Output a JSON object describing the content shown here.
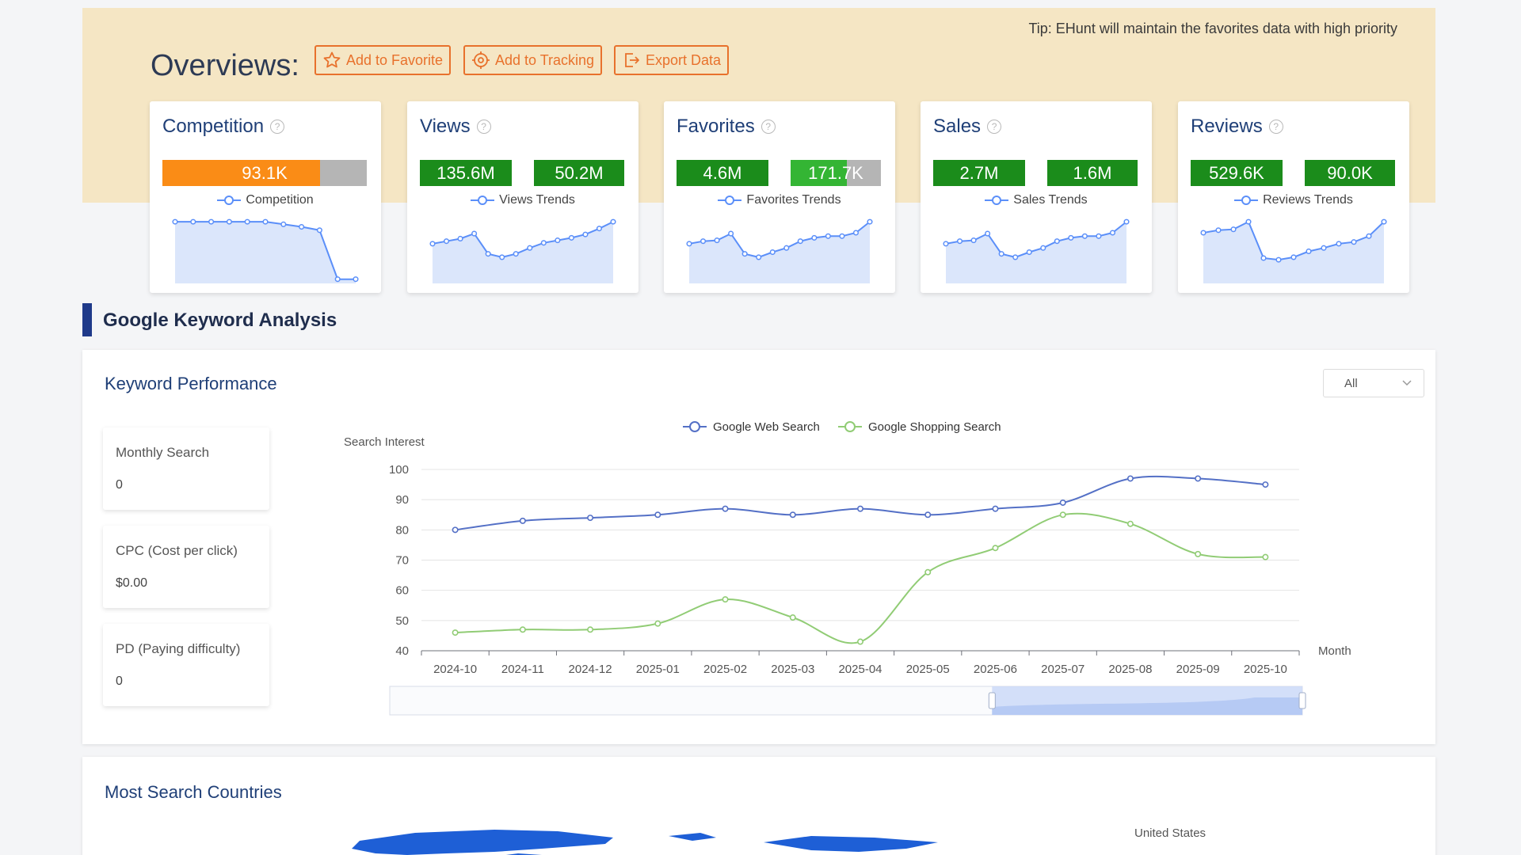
{
  "header": {
    "tip": "Tip: EHunt will maintain the favorites data with high priority",
    "title": "Overviews:",
    "buttons": {
      "favorite": "Add to Favorite",
      "tracking": "Add to Tracking",
      "export": "Export Data"
    }
  },
  "cards": [
    {
      "title": "Competition",
      "legend": "Competition",
      "bars": [
        {
          "value": "93.1K",
          "color": "#fa8c16",
          "fill": 0.77
        }
      ],
      "trend": [
        98,
        98,
        98,
        98,
        98,
        98,
        95,
        92,
        88,
        30,
        30
      ]
    },
    {
      "title": "Views",
      "legend": "Views Trends",
      "bars": [
        {
          "value": "135.6M",
          "color": "#1b8c1b",
          "fill": 1.0
        },
        {
          "value": "50.2M",
          "color": "#1b8c1b",
          "fill": 1.0
        }
      ],
      "trend": [
        72,
        75,
        78,
        84,
        60,
        56,
        60,
        67,
        73,
        76,
        79,
        83,
        90,
        98
      ]
    },
    {
      "title": "Favorites",
      "legend": "Favorites Trends",
      "bars": [
        {
          "value": "4.6M",
          "color": "#1b8c1b",
          "fill": 1.0
        },
        {
          "value": "171.7K",
          "color": "#34b534",
          "fill": 0.62
        }
      ],
      "trend": [
        72,
        75,
        76,
        84,
        60,
        56,
        62,
        67,
        75,
        79,
        81,
        81,
        85,
        98
      ]
    },
    {
      "title": "Sales",
      "legend": "Sales Trends",
      "bars": [
        {
          "value": "2.7M",
          "color": "#1b8c1b",
          "fill": 1.0
        },
        {
          "value": "1.6M",
          "color": "#1b8c1b",
          "fill": 1.0
        }
      ],
      "trend": [
        72,
        75,
        76,
        84,
        60,
        56,
        62,
        67,
        75,
        79,
        81,
        81,
        85,
        98
      ]
    },
    {
      "title": "Reviews",
      "legend": "Reviews Trends",
      "bars": [
        {
          "value": "529.6K",
          "color": "#1b8c1b",
          "fill": 1.0
        },
        {
          "value": "90.0K",
          "color": "#1b8c1b",
          "fill": 1.0
        }
      ],
      "trend": [
        85,
        88,
        89,
        98,
        55,
        53,
        56,
        63,
        67,
        72,
        74,
        81,
        98
      ]
    }
  ],
  "section": {
    "title": "Google Keyword Analysis"
  },
  "performance": {
    "title": "Keyword Performance",
    "select": "All",
    "metrics": [
      {
        "label": "Monthly Search",
        "value": "0"
      },
      {
        "label": "CPC (Cost per click)",
        "value": "$0.00"
      },
      {
        "label": "PD (Paying difficulty)",
        "value": "0"
      }
    ]
  },
  "chart_data": {
    "type": "line",
    "ylabel": "Search Interest",
    "xlabel": "Month",
    "ylim": [
      40,
      100
    ],
    "yticks": [
      40,
      50,
      60,
      70,
      80,
      90,
      100
    ],
    "grid": true,
    "legend_position": "top-center",
    "categories": [
      "2024-10",
      "2024-11",
      "2024-12",
      "2025-01",
      "2025-02",
      "2025-03",
      "2025-04",
      "2025-05",
      "2025-06",
      "2025-07",
      "2025-08",
      "2025-09",
      "2025-10"
    ],
    "series": [
      {
        "name": "Google Web Search",
        "color": "#5470c6",
        "values": [
          80,
          83,
          84,
          85,
          87,
          85,
          87,
          85,
          87,
          89,
          97,
          97,
          95
        ]
      },
      {
        "name": "Google Shopping Search",
        "color": "#91cc75",
        "values": [
          46,
          47,
          47,
          49,
          57,
          51,
          43,
          66,
          74,
          85,
          82,
          72,
          71
        ]
      }
    ],
    "zoom_window": [
      0.66,
      1.0
    ]
  },
  "countries": {
    "title": "Most Search Countries",
    "top_label": "United States",
    "map_color": "#1e5fd6"
  }
}
